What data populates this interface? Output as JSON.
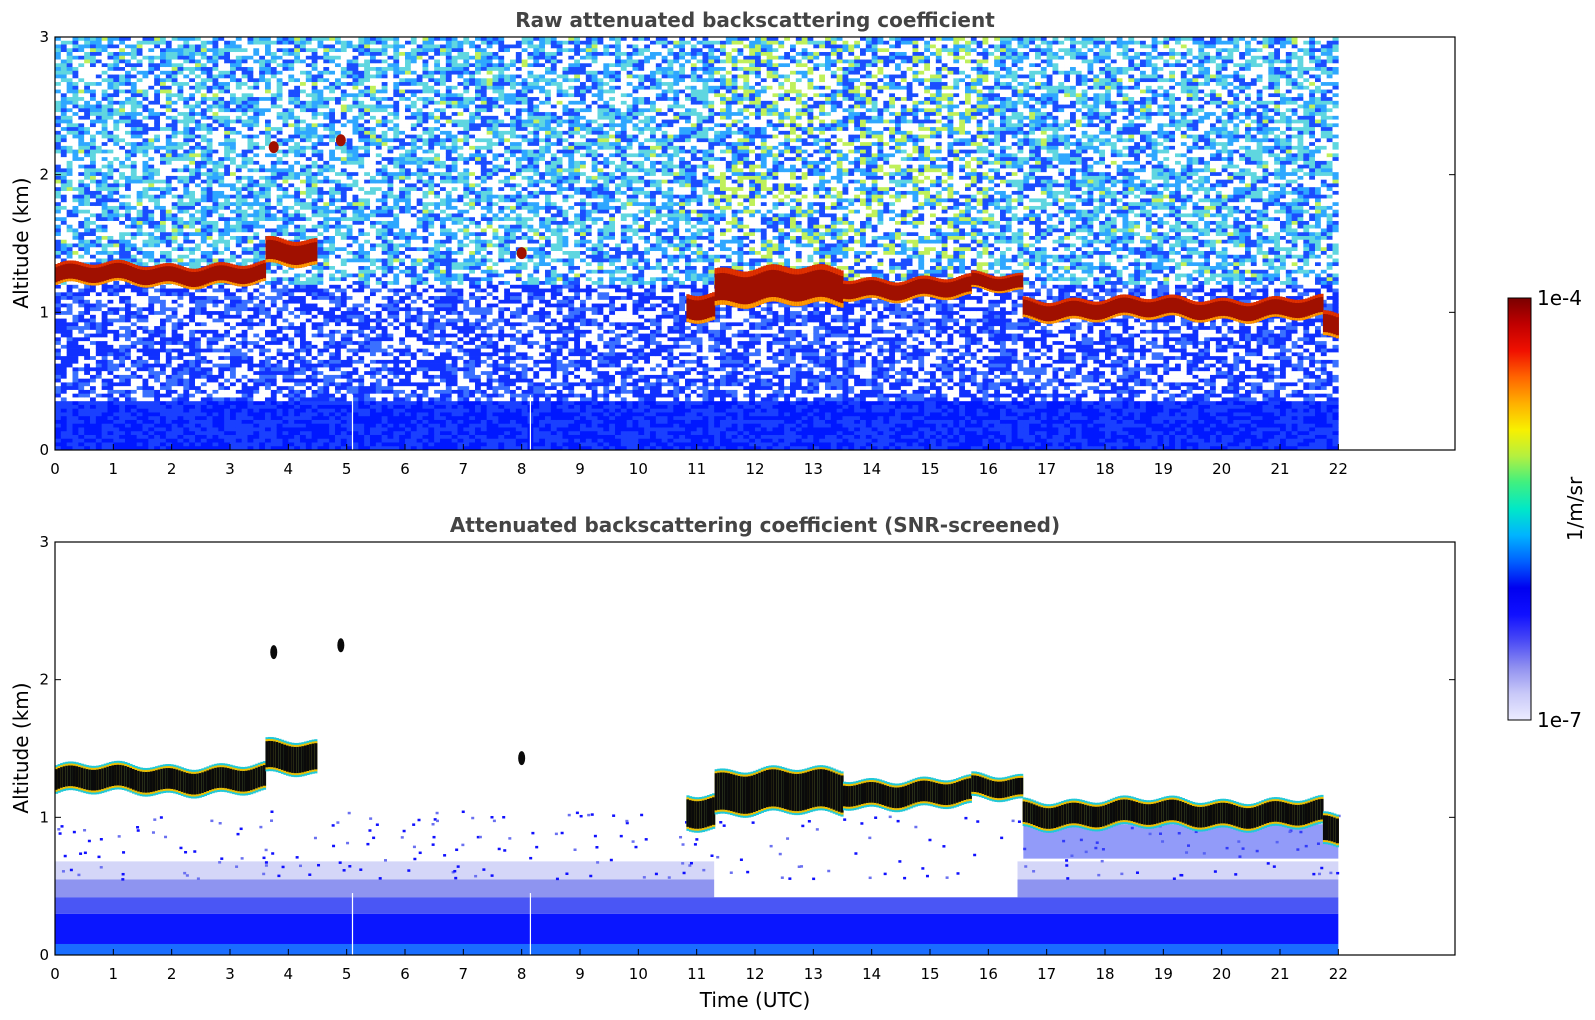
{
  "chart_data": [
    {
      "type": "heatmap",
      "title": "Raw attenuated backscattering coefficient",
      "xlabel": "",
      "ylabel": "Altitude (km)",
      "xlim": [
        0,
        24
      ],
      "ylim": [
        0,
        3
      ],
      "x_ticks": [
        "0",
        "1",
        "2",
        "3",
        "4",
        "5",
        "6",
        "7",
        "8",
        "9",
        "10",
        "11",
        "12",
        "13",
        "14",
        "15",
        "16",
        "17",
        "18",
        "19",
        "20",
        "21",
        "22"
      ],
      "y_ticks": [
        "0",
        "1",
        "2",
        "3"
      ],
      "data_time_range": [
        0,
        22
      ],
      "cloud_layer": {
        "segments": [
          {
            "t": [
              0.0,
              3.6
            ],
            "alt": [
              1.2,
              1.35
            ]
          },
          {
            "t": [
              3.6,
              4.45
            ],
            "alt": [
              1.33,
              1.52
            ]
          },
          {
            "t": [
              10.8,
              11.3
            ],
            "alt": [
              0.95,
              1.15
            ]
          },
          {
            "t": [
              11.3,
              13.5
            ],
            "alt": [
              1.05,
              1.32
            ]
          },
          {
            "t": [
              13.5,
              15.7
            ],
            "alt": [
              1.1,
              1.25
            ]
          },
          {
            "t": [
              15.7,
              16.55
            ],
            "alt": [
              1.15,
              1.27
            ]
          },
          {
            "t": [
              16.55,
              21.7
            ],
            "alt": [
              0.95,
              1.1
            ]
          },
          {
            "t": [
              21.7,
              22.0
            ],
            "alt": [
              0.8,
              0.98
            ]
          }
        ],
        "patches": [
          {
            "t": 3.75,
            "alt": 2.2
          },
          {
            "t": 4.9,
            "alt": 2.25
          },
          {
            "t": 8.0,
            "alt": 1.43
          }
        ]
      }
    },
    {
      "type": "heatmap",
      "title": "Attenuated backscattering coefficient (SNR-screened)",
      "xlabel": "Time (UTC)",
      "ylabel": "Altitude (km)",
      "xlim": [
        0,
        24
      ],
      "ylim": [
        0,
        3
      ],
      "x_ticks": [
        "0",
        "1",
        "2",
        "3",
        "4",
        "5",
        "6",
        "7",
        "8",
        "9",
        "10",
        "11",
        "12",
        "13",
        "14",
        "15",
        "16",
        "17",
        "18",
        "19",
        "20",
        "21",
        "22"
      ],
      "y_ticks": [
        "0",
        "1",
        "2",
        "3"
      ],
      "data_time_range": [
        0,
        22
      ]
    }
  ],
  "colorbar": {
    "max_label": "1e-4",
    "min_label": "1e-7",
    "unit_label": "1/m/sr",
    "scale": "log",
    "colormap": [
      "#ececff",
      "#c8c8f8",
      "#9090f0",
      "#4a4af5",
      "#1010ff",
      "#0000f0",
      "#0060ff",
      "#00b4ff",
      "#00e8c8",
      "#40f080",
      "#b4f040",
      "#f8f000",
      "#ffb000",
      "#ff6400",
      "#f01000",
      "#c00000",
      "#7a0000"
    ]
  }
}
